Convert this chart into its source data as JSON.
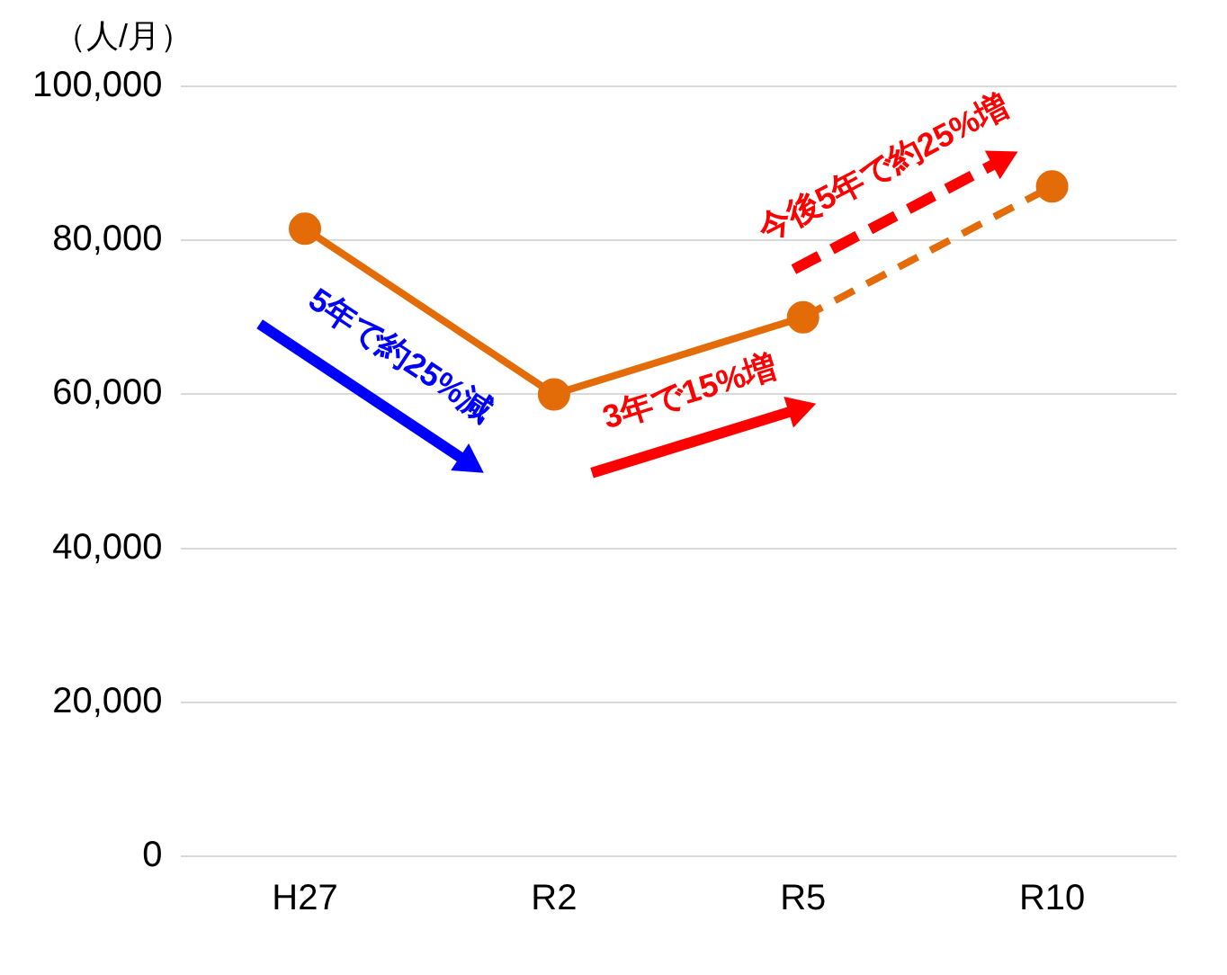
{
  "chart_data": {
    "type": "line",
    "ylabel": "（人/月）",
    "categories": [
      "H27",
      "R2",
      "R5",
      "R10"
    ],
    "series": [
      {
        "color": "#e36c09",
        "values": [
          81500,
          60000,
          70000,
          null
        ],
        "line_style": "solid"
      },
      {
        "color": "#e36c09",
        "values": [
          null,
          null,
          70000,
          87000
        ],
        "line_style": "dashed"
      }
    ],
    "ylim": [
      0,
      100000
    ],
    "yticks": [
      0,
      {
        "value": 20000,
        "label": "20,000"
      },
      {
        "value": 40000,
        "label": "40,000"
      },
      {
        "value": 60000,
        "label": "60,000"
      },
      {
        "value": 80000,
        "label": "80,000"
      },
      {
        "value": 100000,
        "label": "100,000"
      }
    ],
    "grid": "y",
    "legend": false,
    "marker": "circle",
    "annotations": [
      "5年で約25%減",
      "3年で15%増",
      "今後5年で約25%増"
    ]
  }
}
